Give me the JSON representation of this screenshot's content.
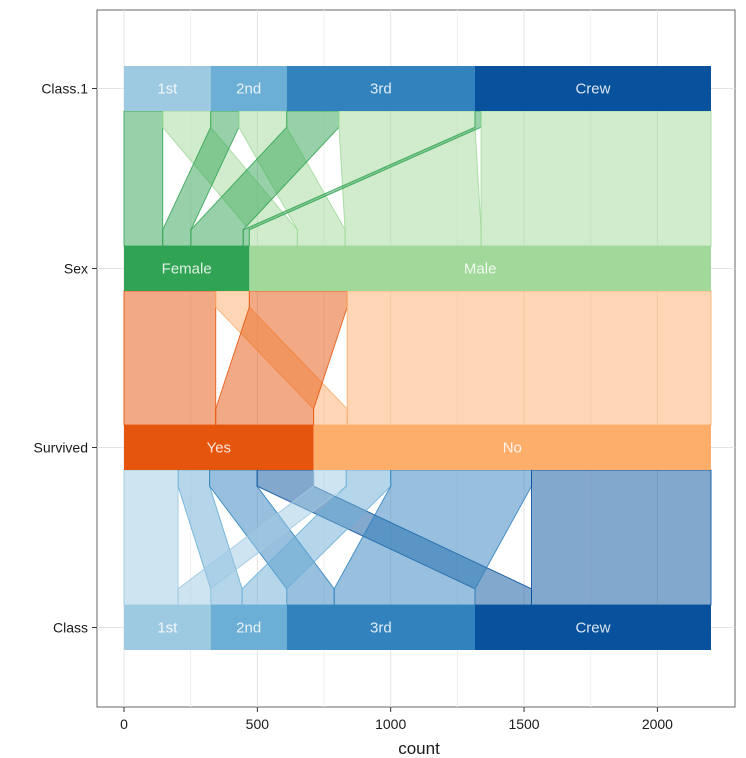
{
  "chart_data": {
    "type": "parallel-sets",
    "xlabel": "count",
    "xlim": [
      0,
      2201
    ],
    "x_ticks": [
      0,
      500,
      1000,
      1500,
      2000
    ],
    "x_tick_labels": [
      "0",
      "500",
      "1000",
      "1500",
      "2000"
    ],
    "axes": [
      {
        "name": "Class.1",
        "categories": [
          {
            "label": "1st",
            "count": 325,
            "color": "#9ecae1"
          },
          {
            "label": "2nd",
            "count": 285,
            "color": "#6baed6"
          },
          {
            "label": "3rd",
            "count": 706,
            "color": "#3182bd"
          },
          {
            "label": "Crew",
            "count": 885,
            "color": "#08519c"
          }
        ]
      },
      {
        "name": "Sex",
        "categories": [
          {
            "label": "Female",
            "count": 470,
            "color": "#31a354"
          },
          {
            "label": "Male",
            "count": 1731,
            "color": "#a1d99b"
          }
        ]
      },
      {
        "name": "Survived",
        "categories": [
          {
            "label": "Yes",
            "count": 711,
            "color": "#e6550d"
          },
          {
            "label": "No",
            "count": 1490,
            "color": "#fdae6b"
          }
        ]
      },
      {
        "name": "Class",
        "categories": [
          {
            "label": "1st",
            "count": 325,
            "color": "#9ecae1"
          },
          {
            "label": "2nd",
            "count": 285,
            "color": "#6baed6"
          },
          {
            "label": "3rd",
            "count": 706,
            "color": "#3182bd"
          },
          {
            "label": "Crew",
            "count": 885,
            "color": "#08519c"
          }
        ]
      }
    ],
    "flows": [
      {
        "from_axis": 0,
        "to_axis": 1,
        "from": "1st",
        "to": "Female",
        "count": 145,
        "color": "#31a354"
      },
      {
        "from_axis": 0,
        "to_axis": 1,
        "from": "1st",
        "to": "Male",
        "count": 180,
        "color": "#a1d99b"
      },
      {
        "from_axis": 0,
        "to_axis": 1,
        "from": "2nd",
        "to": "Female",
        "count": 106,
        "color": "#31a354"
      },
      {
        "from_axis": 0,
        "to_axis": 1,
        "from": "2nd",
        "to": "Male",
        "count": 179,
        "color": "#a1d99b"
      },
      {
        "from_axis": 0,
        "to_axis": 1,
        "from": "3rd",
        "to": "Female",
        "count": 196,
        "color": "#31a354"
      },
      {
        "from_axis": 0,
        "to_axis": 1,
        "from": "3rd",
        "to": "Male",
        "count": 510,
        "color": "#a1d99b"
      },
      {
        "from_axis": 0,
        "to_axis": 1,
        "from": "Crew",
        "to": "Female",
        "count": 23,
        "color": "#31a354"
      },
      {
        "from_axis": 0,
        "to_axis": 1,
        "from": "Crew",
        "to": "Male",
        "count": 862,
        "color": "#a1d99b"
      },
      {
        "from_axis": 1,
        "to_axis": 2,
        "from": "Female",
        "to": "Yes",
        "count": 344,
        "color": "#e6550d"
      },
      {
        "from_axis": 1,
        "to_axis": 2,
        "from": "Female",
        "to": "No",
        "count": 126,
        "color": "#fdae6b"
      },
      {
        "from_axis": 1,
        "to_axis": 2,
        "from": "Male",
        "to": "Yes",
        "count": 367,
        "color": "#e6550d"
      },
      {
        "from_axis": 1,
        "to_axis": 2,
        "from": "Male",
        "to": "No",
        "count": 1364,
        "color": "#fdae6b"
      },
      {
        "from_axis": 2,
        "to_axis": 3,
        "from": "Yes",
        "to": "1st",
        "count": 203,
        "color": "#9ecae1"
      },
      {
        "from_axis": 2,
        "to_axis": 3,
        "from": "Yes",
        "to": "2nd",
        "count": 118,
        "color": "#6baed6"
      },
      {
        "from_axis": 2,
        "to_axis": 3,
        "from": "Yes",
        "to": "3rd",
        "count": 178,
        "color": "#3182bd"
      },
      {
        "from_axis": 2,
        "to_axis": 3,
        "from": "Yes",
        "to": "Crew",
        "count": 212,
        "color": "#08519c"
      },
      {
        "from_axis": 2,
        "to_axis": 3,
        "from": "No",
        "to": "1st",
        "count": 122,
        "color": "#9ecae1"
      },
      {
        "from_axis": 2,
        "to_axis": 3,
        "from": "No",
        "to": "2nd",
        "count": 167,
        "color": "#6baed6"
      },
      {
        "from_axis": 2,
        "to_axis": 3,
        "from": "No",
        "to": "3rd",
        "count": 528,
        "color": "#3182bd"
      },
      {
        "from_axis": 2,
        "to_axis": 3,
        "from": "No",
        "to": "Crew",
        "count": 673,
        "color": "#08519c"
      }
    ]
  }
}
